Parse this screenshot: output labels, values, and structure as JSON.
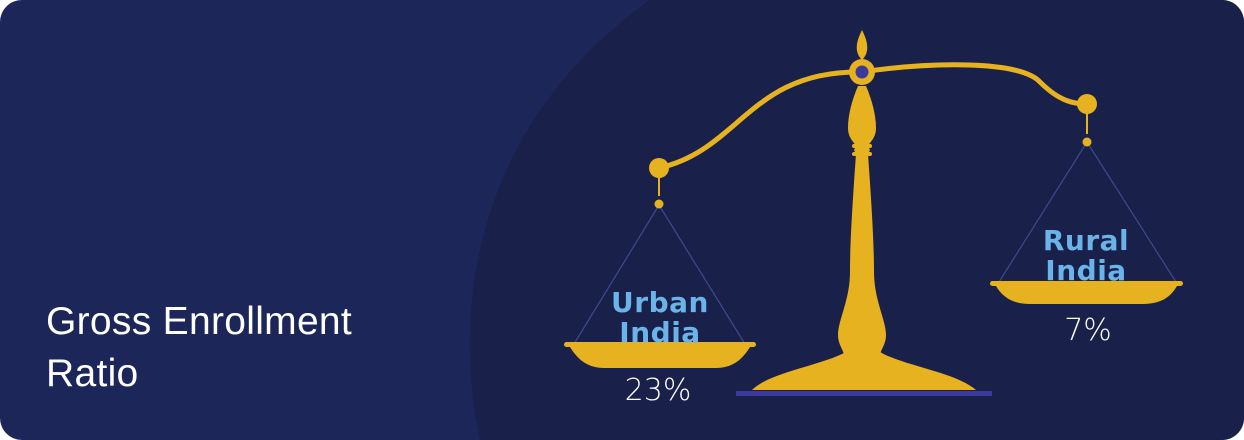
{
  "title": {
    "line1": "Gross Enrollment",
    "line2": "Ratio"
  },
  "left_pan": {
    "label_line1": "Urban",
    "label_line2": "India",
    "value": "23%"
  },
  "right_pan": {
    "label_line1": "Rural",
    "label_line2": "India",
    "value": "7%"
  },
  "colors": {
    "background": "#1d2658",
    "panel": "#19214a",
    "scale_gold": "#e7b21f",
    "label_blue": "#6ab4ea",
    "accent_purple": "#3a3a9a",
    "text_white": "#ffffff"
  }
}
